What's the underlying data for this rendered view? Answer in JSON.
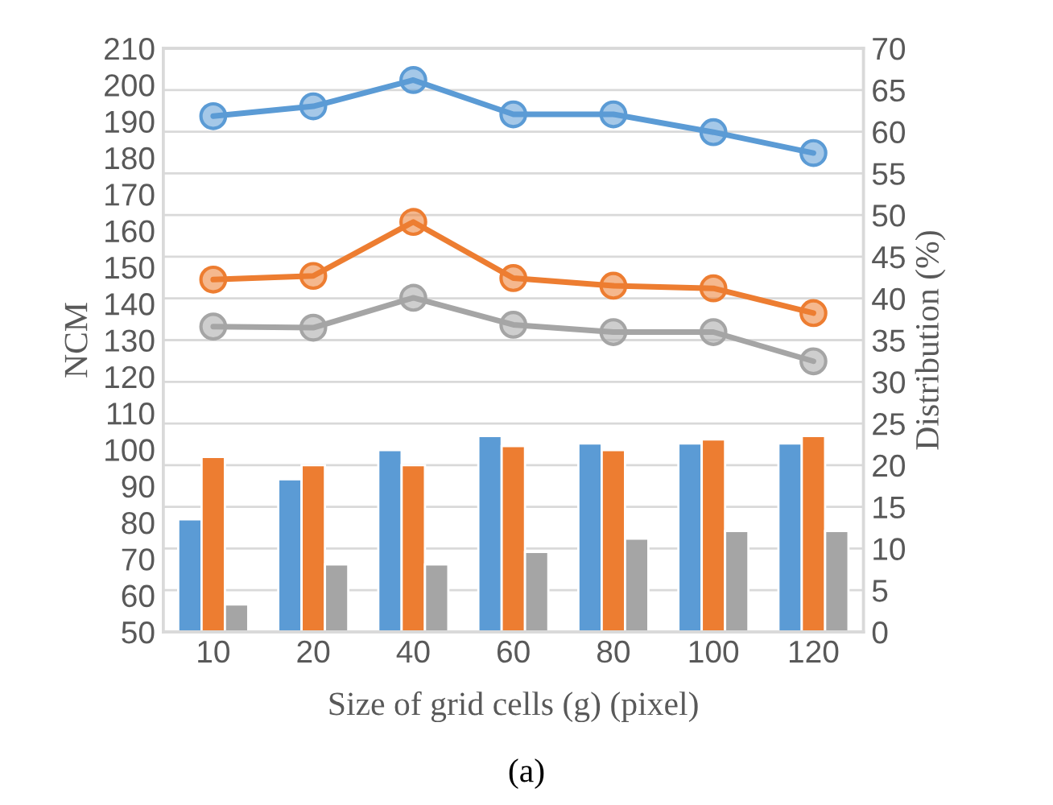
{
  "chart_data": {
    "type": "line",
    "xlabel": "Size of grid cells (g) (pixel)",
    "ylabel": "NCM",
    "y2label": "Distribution (%)",
    "categories": [
      "10",
      "20",
      "40",
      "60",
      "80",
      "100",
      "120"
    ],
    "series": [
      {
        "color": "#5b9bd5",
        "values": [
          191.4,
          194.1,
          201.3,
          191.9,
          191.9,
          187.0,
          181.3
        ]
      },
      {
        "color": "#ed7d31",
        "values": [
          146.6,
          147.6,
          162.4,
          147.0,
          144.9,
          144.2,
          137.4
        ]
      },
      {
        "color": "#a5a5a5",
        "values": [
          133.7,
          133.4,
          141.6,
          134.2,
          132.2,
          132.2,
          124.2
        ]
      },
      {
        "type": "bar",
        "axis": "y2",
        "color": "#5b9bd5",
        "values": [
          13.5,
          18.3,
          21.8,
          23.5,
          22.6,
          22.6,
          22.6
        ]
      },
      {
        "type": "bar",
        "axis": "y2",
        "color": "#ed7d31",
        "values": [
          21.0,
          20.0,
          20.0,
          22.3,
          21.8,
          23.1,
          23.5
        ]
      },
      {
        "type": "bar",
        "axis": "y2",
        "color": "#a5a5a5",
        "values": [
          3.3,
          8.1,
          8.1,
          9.6,
          11.2,
          12.1,
          12.1
        ]
      }
    ],
    "ylim": [
      50,
      210
    ],
    "yticks": [
      50,
      60,
      70,
      80,
      90,
      100,
      110,
      120,
      130,
      140,
      150,
      160,
      170,
      180,
      190,
      200,
      210
    ],
    "y2lim": [
      0,
      70
    ],
    "y2ticks": [
      0,
      5,
      10,
      15,
      20,
      25,
      30,
      35,
      40,
      45,
      50,
      55,
      60,
      65,
      70
    ],
    "grid": "y",
    "legend": false,
    "marker": "circle",
    "line_style": "solid",
    "annotations": [
      "(a)"
    ]
  }
}
